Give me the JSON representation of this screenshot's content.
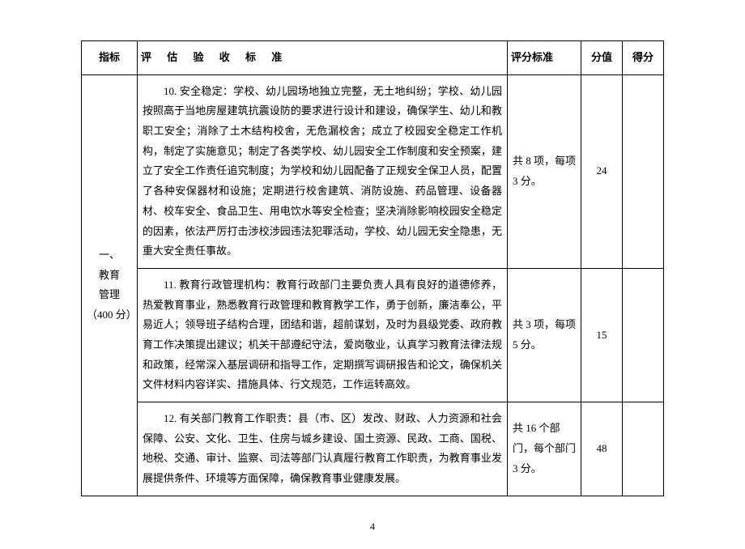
{
  "headers": {
    "indicator": "指标",
    "criteria": "评 估 验 收 标 准",
    "standard": "评分标准",
    "points": "分值",
    "score": "得分"
  },
  "category": {
    "label": "一、\n教育\n管理\n（400 分）"
  },
  "rows": [
    {
      "criteria": "10. 安全稳定：学校、幼儿园场地独立完整，无土地纠纷；学校、幼儿园按照高于当地房屋建筑抗震设防的要求进行设计和建设，确保学生、幼儿和教职工安全；消除了土木结构校舍，无危漏校舍；成立了校园安全稳定工作机构，制定了实施意见；制定了各类学校、幼儿园安全工作制度和安全预案，建立了安全工作责任追究制度；为学校和幼儿园配备了正规安全保卫人员，配置了各种安保器材和设施；定期进行校舍建筑、消防设施、药品管理、设备器材、校车安全、食品卫生、用电饮水等安全检查；坚决消除影响校园安全稳定的因素，依法严厉打击涉校涉园违法犯罪活动，学校、幼儿园无安全隐患，无重大安全责任事故。",
      "standard": "共 8 项，每项 3 分。",
      "points": "24",
      "score": ""
    },
    {
      "criteria": "11. 教育行政管理机构：教育行政部门主要负责人具有良好的道德修养，热爱教育事业，熟悉教育行政管理和教育教学工作，勇于创新，廉洁奉公，平易近人；领导班子结构合理，团结和谐，超前谋划，及时为县级党委、政府教育工作决策提出建议；机关干部遵纪守法，爱岗敬业，认真学习教育法律法规和政策，经常深入基层调研和指导工作，定期撰写调研报告和论文，确保机关文件材料内容详实、措施具体、行文规范，工作运转高效。",
      "standard": "共 3 项，每项 5 分。",
      "points": "15",
      "score": ""
    },
    {
      "criteria": "12. 有关部门教育工作职责：县（市、区）发改、财政、人力资源和社会保障、公安、文化、卫生、住房与城乡建设、国土资源、民政、工商、国税、地税、交通、审计、监察、司法等部门认真履行教育工作职责，为教育事业发展提供条件、环境等方面保障，确保教育事业健康发展。",
      "standard": "共 16 个部门，每个部门 3 分。",
      "points": "48",
      "score": ""
    }
  ],
  "pageNumber": "4"
}
